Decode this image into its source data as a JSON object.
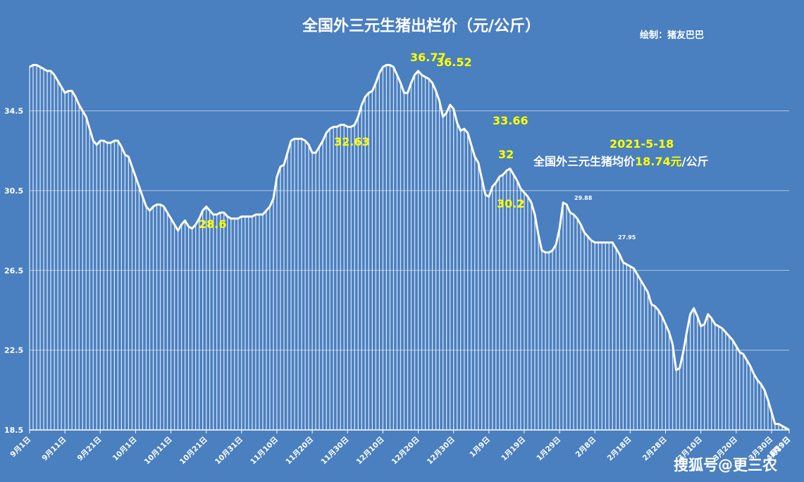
{
  "chart_data": {
    "type": "area",
    "title": "全国外三元生猪出栏价（元/公斤）",
    "credit": "绘制：猪友巴巴",
    "watermark": "搜狐号@更三农",
    "ylim": [
      18.5,
      39
    ],
    "yticks": [
      18.5,
      22.5,
      26.5,
      30.5,
      34.5
    ],
    "xticks": [
      "9月1日",
      "9月11日",
      "9月21日",
      "10月1日",
      "10月11日",
      "10月21日",
      "10月31日",
      "11月10日",
      "11月20日",
      "11月30日",
      "12月10日",
      "12月20日",
      "12月30日",
      "1月9日",
      "1月19日",
      "1月29日",
      "2月8日",
      "2月18日",
      "2月28日",
      "3月10日",
      "3月20日",
      "3月30日",
      "4月9日",
      "4月19日",
      "4月29日",
      "5月9日"
    ],
    "grid": true,
    "series": [
      {
        "values": [
          36.7,
          36.8,
          36.8,
          36.7,
          36.6,
          36.5,
          36.5,
          36.3,
          36.0,
          35.7,
          35.4,
          35.5,
          35.5,
          35.2,
          34.8,
          34.5,
          34.2,
          33.6,
          33.0,
          32.8,
          33.0,
          33.0,
          32.9,
          32.9,
          33.0,
          33.0,
          32.7,
          32.3,
          32.2,
          31.7,
          31.2,
          30.7,
          30.2,
          29.7,
          29.5,
          29.7,
          29.8,
          29.8,
          29.7,
          29.4,
          29.1,
          28.8,
          28.5,
          28.8,
          29.0,
          28.7,
          28.6,
          28.8,
          29.1,
          29.5,
          29.7,
          29.5,
          29.3,
          29.3,
          29.4,
          29.4,
          29.2,
          29.1,
          29.1,
          29.1,
          29.2,
          29.2,
          29.2,
          29.2,
          29.3,
          29.3,
          29.3,
          29.5,
          29.7,
          30.1,
          31.2,
          31.7,
          31.8,
          32.4,
          33.0,
          33.1,
          33.1,
          33.1,
          33.0,
          32.8,
          32.4,
          32.4,
          32.7,
          33.0,
          33.4,
          33.6,
          33.7,
          33.7,
          33.8,
          33.8,
          33.7,
          33.7,
          33.8,
          34.2,
          34.8,
          35.2,
          35.4,
          35.5,
          35.9,
          36.4,
          36.7,
          36.8,
          36.8,
          36.7,
          36.3,
          35.9,
          35.4,
          35.4,
          35.9,
          36.3,
          36.5,
          36.3,
          36.2,
          36.1,
          35.9,
          35.5,
          35.0,
          34.2,
          34.4,
          34.8,
          34.6,
          33.9,
          33.5,
          33.6,
          33.4,
          32.8,
          32.2,
          31.9,
          31.1,
          30.3,
          30.2,
          30.7,
          30.9,
          31.2,
          31.3,
          31.5,
          31.6,
          31.3,
          31.0,
          30.6,
          30.4,
          30.2,
          29.9,
          29.3,
          28.3,
          27.5,
          27.4,
          27.4,
          27.5,
          27.8,
          28.6,
          29.9,
          29.8,
          29.4,
          29.3,
          29.1,
          28.8,
          28.4,
          28.2,
          28.0,
          27.9,
          27.9,
          27.9,
          27.9,
          27.9,
          27.9,
          27.6,
          27.3,
          26.9,
          26.8,
          26.7,
          26.6,
          26.3,
          26.0,
          25.7,
          25.4,
          24.8,
          24.7,
          24.5,
          24.2,
          23.8,
          23.4,
          22.8,
          21.5,
          21.6,
          22.4,
          23.4,
          24.3,
          24.6,
          24.2,
          23.7,
          23.8,
          24.3,
          24.1,
          23.8,
          23.7,
          23.6,
          23.4,
          23.2,
          23.0,
          22.7,
          22.4,
          22.3,
          22.0,
          21.7,
          21.3,
          21.0,
          20.8,
          20.5,
          20.0,
          19.4,
          18.8,
          18.8,
          18.7,
          18.6,
          18.5
        ]
      }
    ],
    "annotations": [
      {
        "text": "36.77",
        "color": "#ffff00"
      },
      {
        "text": "36.52",
        "color": "#ffff00"
      },
      {
        "text": "32.63",
        "color": "#ffff00"
      },
      {
        "text": "33.66",
        "color": "#ffff00"
      },
      {
        "text": "32",
        "color": "#ffff00"
      },
      {
        "text": "30.2",
        "color": "#ffff00"
      },
      {
        "text": "28.6",
        "color": "#ffff00"
      },
      {
        "text": "29.88",
        "color": "#ffffff"
      },
      {
        "text": "27.95",
        "color": "#ffffff"
      },
      {
        "text": "2021-5-18",
        "color": "#ffff00"
      }
    ],
    "note": {
      "prefix": "全国外三元生猪均价",
      "value": "18.74元",
      "suffix": "/公斤"
    },
    "colors": {
      "background": "#4a7fc0",
      "line": "#ffffff",
      "highlight": "#ffff00"
    }
  }
}
